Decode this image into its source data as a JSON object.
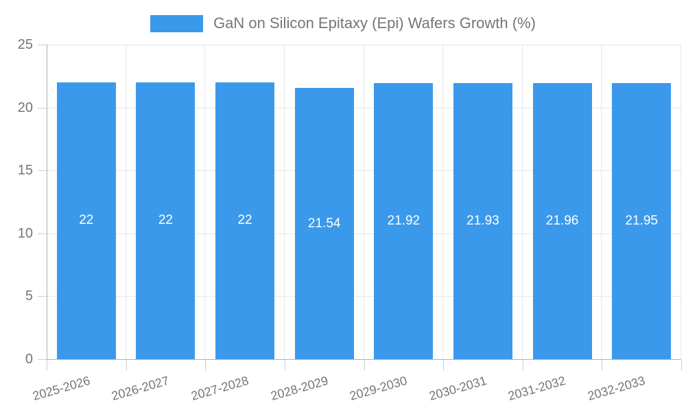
{
  "chart_data": {
    "type": "bar",
    "legend_label": "GaN on Silicon Epitaxy (Epi) Wafers Growth (%)",
    "categories": [
      "2025-2026",
      "2026-2027",
      "2027-2028",
      "2028-2029",
      "2029-2030",
      "2030-2031",
      "2031-2032",
      "2032-2033"
    ],
    "values": [
      22,
      22,
      22,
      21.54,
      21.92,
      21.93,
      21.96,
      21.95
    ],
    "bar_labels": [
      "22",
      "22",
      "22",
      "21.54",
      "21.92",
      "21.93",
      "21.96",
      "21.95"
    ],
    "xlabel": "",
    "ylabel": "",
    "ylim": [
      0,
      25
    ],
    "yticks": [
      0,
      5,
      10,
      15,
      20,
      25
    ],
    "grid": true,
    "legend_position": "top",
    "colors": {
      "bar": "#3B99EB",
      "bar_label": "#FFFFFF",
      "axis_line": "#B0B0B0",
      "tick": "#CCCCCC",
      "gridline": "#E7E7E7",
      "text": "#757575",
      "background": "#FFFFFF"
    }
  }
}
